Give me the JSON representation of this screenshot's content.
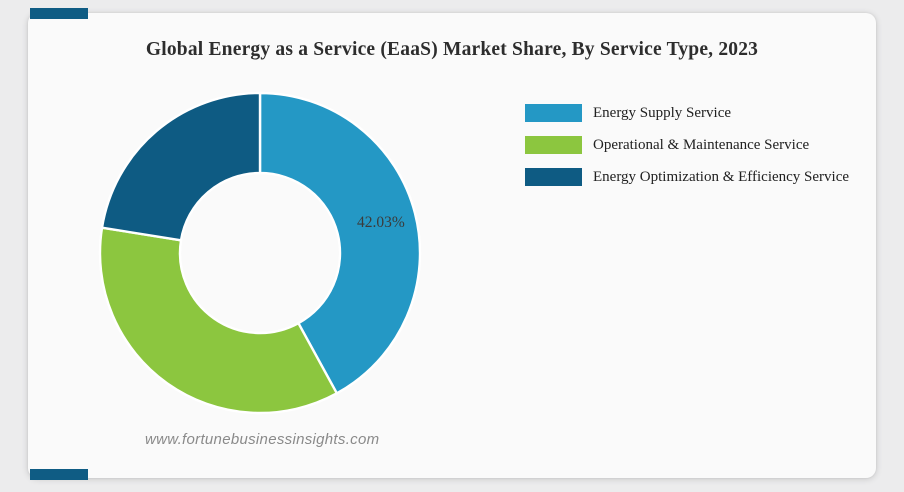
{
  "page": {
    "background_color": "#ececed",
    "card_color": "#fafafa"
  },
  "accents": {
    "bar_color": "#0f5c84"
  },
  "header": {
    "title": "Global Energy as a Service (EaaS) Market Share, By Service Type, 2023"
  },
  "chart_data": {
    "type": "pie",
    "donut": true,
    "title": "Global Energy as a Service (EaaS) Market Share, By Service Type, 2023",
    "start_angle_deg": 0,
    "direction": "clockwise",
    "outer_radius": 160,
    "inner_radius": 80,
    "separator_color": "#ffffff",
    "legend_position": "right",
    "series": [
      {
        "label": "Energy Supply Service",
        "value": 42.03,
        "color": "#2498c5",
        "data_label": "42.03%"
      },
      {
        "label": "Operational & Maintenance Service",
        "value": 35.5,
        "color": "#8cc63f",
        "data_label": ""
      },
      {
        "label": "Energy Optimization & Efficiency Service",
        "value": 22.47,
        "color": "#0e5b83",
        "data_label": ""
      }
    ]
  },
  "footer": {
    "watermark": "www.fortunebusinessinsights.com"
  }
}
